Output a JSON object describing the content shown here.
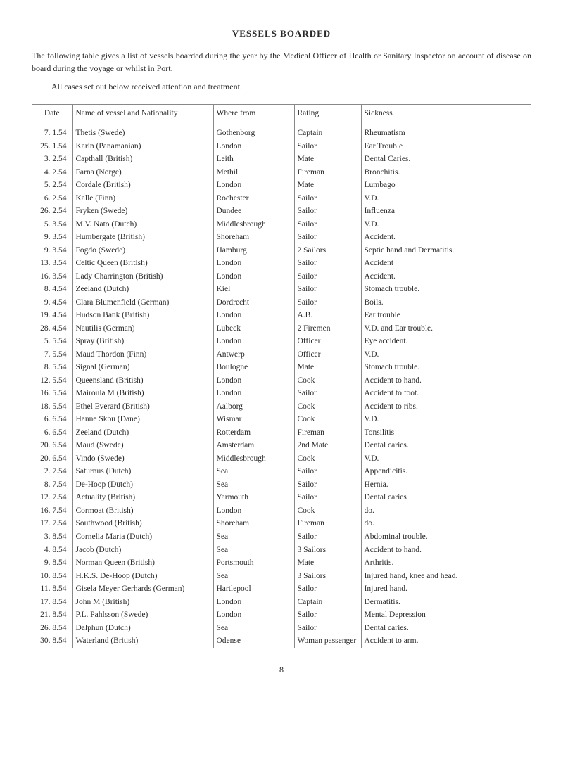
{
  "title": "VESSELS BOARDED",
  "intro_line1": "The following table gives a list of vessels boarded during the year by the Medical Officer of Health or Sanitary Inspector on account of disease on board during the voyage or whilst in Port.",
  "intro_line2": "All cases set out below received attention and treatment.",
  "columns": [
    "Date",
    "Name of vessel and Nationality",
    "Where from",
    "Rating",
    "Sickness"
  ],
  "rows": [
    [
      "7. 1.54",
      "Thetis (Swede)",
      "Gothenborg",
      "Captain",
      "Rheumatism"
    ],
    [
      "25. 1.54",
      "Karin (Panamanian)",
      "London",
      "Sailor",
      "Ear Trouble"
    ],
    [
      "3. 2.54",
      "Capthall (British)",
      "Leith",
      "Mate",
      "Dental Caries."
    ],
    [
      "4. 2.54",
      "Farna (Norge)",
      "Methil",
      "Fireman",
      "Bronchitis."
    ],
    [
      "5. 2.54",
      "Cordale (British)",
      "London",
      "Mate",
      "Lumbago"
    ],
    [
      "6. 2.54",
      "Kalle (Finn)",
      "Rochester",
      "Sailor",
      "V.D."
    ],
    [
      "26. 2.54",
      "Fryken (Swede)",
      "Dundee",
      "Sailor",
      "Influenza"
    ],
    [
      "5. 3.54",
      "M.V. Nato (Dutch)",
      "Middlesbrough",
      "Sailor",
      "V.D."
    ],
    [
      "9. 3.54",
      "Humbergate (British)",
      "Shoreham",
      "Sailor",
      "Accident."
    ],
    [
      "9. 3.54",
      "Fogdo (Swede)",
      "Hamburg",
      "2 Sailors",
      "Septic hand and Dermatitis."
    ],
    [
      "13. 3.54",
      "Celtic Queen (British)",
      "London",
      "Sailor",
      "Accident"
    ],
    [
      "16. 3.54",
      "Lady Charrington (British)",
      "London",
      "Sailor",
      "Accident."
    ],
    [
      "8. 4.54",
      "Zeeland (Dutch)",
      "Kiel",
      "Sailor",
      "Stomach trouble."
    ],
    [
      "9. 4.54",
      "Clara Blumenfield (German)",
      "Dordrecht",
      "Sailor",
      "Boils."
    ],
    [
      "19. 4.54",
      "Hudson Bank (British)",
      "London",
      "A.B.",
      "Ear trouble"
    ],
    [
      "28. 4.54",
      "Nautilis (German)",
      "Lubeck",
      "2 Firemen",
      "V.D. and Ear trouble."
    ],
    [
      "5. 5.54",
      "Spray (British)",
      "London",
      "Officer",
      "Eye accident."
    ],
    [
      "7. 5.54",
      "Maud Thordon (Finn)",
      "Antwerp",
      "Officer",
      "V.D."
    ],
    [
      "8. 5.54",
      "Signal (German)",
      "Boulogne",
      "Mate",
      "Stomach trouble."
    ],
    [
      "12. 5.54",
      "Queensland (British)",
      "London",
      "Cook",
      "Accident to hand."
    ],
    [
      "16. 5.54",
      "Mairoula M (British)",
      "London",
      "Sailor",
      "Accident to foot."
    ],
    [
      "18. 5.54",
      "Ethel Everard (British)",
      "Aalborg",
      "Cook",
      "Accident to ribs."
    ],
    [
      "6. 6.54",
      "Hanne Skou (Dane)",
      "Wismar",
      "Cook",
      "V.D."
    ],
    [
      "6. 6.54",
      "Zeeland (Dutch)",
      "Rotterdam",
      "Fireman",
      "Tonsilitis"
    ],
    [
      "20. 6.54",
      "Maud (Swede)",
      "Amsterdam",
      "2nd Mate",
      "Dental caries."
    ],
    [
      "20. 6.54",
      "Vindo (Swede)",
      "Middlesbrough",
      "Cook",
      "V.D."
    ],
    [
      "2. 7.54",
      "Saturnus (Dutch)",
      "Sea",
      "Sailor",
      "Appendicitis."
    ],
    [
      "8. 7.54",
      "De-Hoop (Dutch)",
      "Sea",
      "Sailor",
      "Hernia."
    ],
    [
      "12. 7.54",
      "Actuality (British)",
      "Yarmouth",
      "Sailor",
      "Dental caries"
    ],
    [
      "16. 7.54",
      "Cormoat (British)",
      "London",
      "Cook",
      "do."
    ],
    [
      "17. 7.54",
      "Southwood (British)",
      "Shoreham",
      "Fireman",
      "do."
    ],
    [
      "3. 8.54",
      "Cornelia Maria (Dutch)",
      "Sea",
      "Sailor",
      "Abdominal trouble."
    ],
    [
      "4. 8.54",
      "Jacob (Dutch)",
      "Sea",
      "3 Sailors",
      "Accident to hand."
    ],
    [
      "9. 8.54",
      "Norman Queen (British)",
      "Portsmouth",
      "Mate",
      "Arthritis."
    ],
    [
      "10. 8.54",
      "H.K.S. De-Hoop (Dutch)",
      "Sea",
      "3 Sailors",
      "Injured hand, knee and head."
    ],
    [
      "11. 8.54",
      "Gisela Meyer Gerhards (German)",
      "Hartlepool",
      "Sailor",
      "Injured hand."
    ],
    [
      "17. 8.54",
      "John M (British)",
      "London",
      "Captain",
      "Dermatitis."
    ],
    [
      "21. 8.54",
      "P.L. Pahlsson (Swede)",
      "London",
      "Sailor",
      "Mental Depression"
    ],
    [
      "26. 8.54",
      "Dalphun (Dutch)",
      "Sea",
      "Sailor",
      "Dental caries."
    ],
    [
      "30. 8.54",
      "Waterland (British)",
      "Odense",
      "Woman passenger",
      "Accident to arm."
    ]
  ],
  "page_number": "8"
}
